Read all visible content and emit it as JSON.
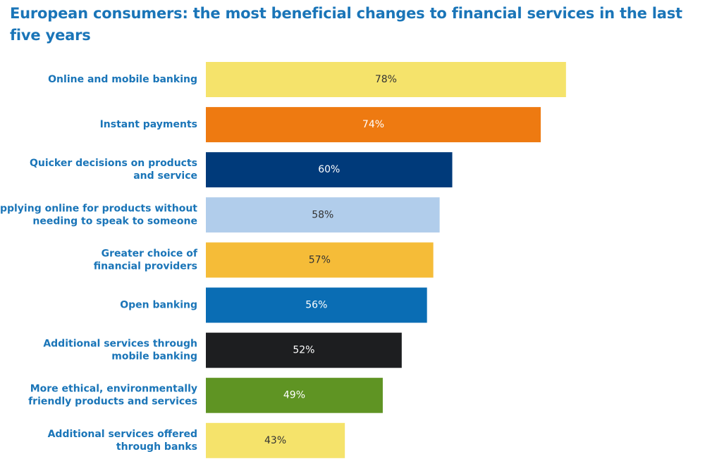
{
  "chart_data": {
    "type": "bar",
    "orientation": "horizontal",
    "title": "European consumers: the most beneficial changes to financial services in the last five years",
    "categories": [
      [
        "Online and mobile banking"
      ],
      [
        "Instant payments"
      ],
      [
        "Quicker decisions on products",
        "and service"
      ],
      [
        "Applying online for products without",
        "needing to speak to someone"
      ],
      [
        "Greater choice of",
        "financial providers"
      ],
      [
        "Open banking"
      ],
      [
        "Additional services through",
        "mobile banking"
      ],
      [
        "More ethical, environmentally",
        "friendly products and services"
      ],
      [
        "Additional services offered",
        "through banks"
      ]
    ],
    "values": [
      78,
      74,
      60,
      58,
      57,
      56,
      52,
      49,
      43
    ],
    "value_labels": [
      "78%",
      "74%",
      "60%",
      "58%",
      "57%",
      "56%",
      "52%",
      "49%",
      "43%"
    ],
    "colors": [
      "#f5e36b",
      "#ee7a11",
      "#003a7a",
      "#b1cdeb",
      "#f5bc38",
      "#0a6db4",
      "#1d1e20",
      "#5f9423",
      "#f5e36b"
    ],
    "label_colors": [
      "#333333",
      "#ffffff",
      "#ffffff",
      "#333333",
      "#333333",
      "#ffffff",
      "#ffffff",
      "#ffffff",
      "#333333"
    ],
    "xlim": [
      21,
      100
    ],
    "grid": false,
    "legend": "none"
  }
}
